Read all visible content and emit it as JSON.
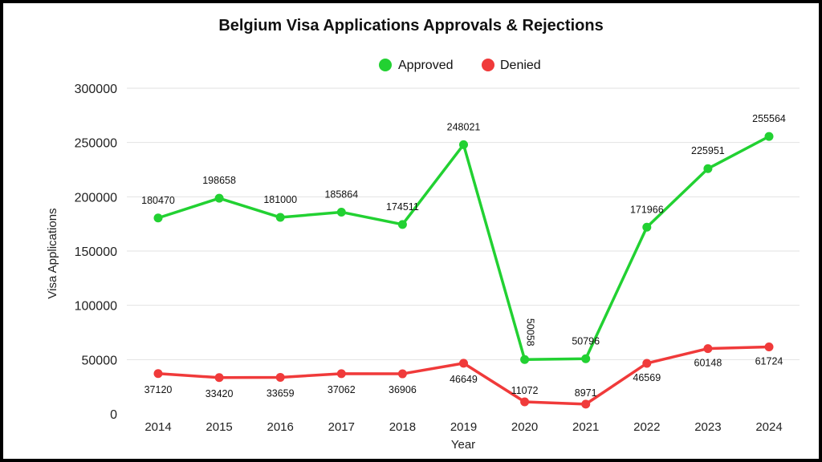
{
  "chart_data": {
    "type": "line",
    "title": "Belgium Visa Applications Approvals & Rejections",
    "xlabel": "Year",
    "ylabel": "Visa Applications",
    "x": [
      "2014",
      "2015",
      "2016",
      "2017",
      "2018",
      "2019",
      "2020",
      "2021",
      "2022",
      "2023",
      "2024"
    ],
    "ylim": [
      0,
      300000
    ],
    "yticks": [
      0,
      50000,
      100000,
      150000,
      200000,
      250000,
      300000
    ],
    "grid": true,
    "legend_position": "top-center",
    "series": [
      {
        "name": "Approved",
        "color": "#22d132",
        "values": [
          180470,
          198658,
          181000,
          185864,
          174511,
          248021,
          50058,
          50796,
          171966,
          225951,
          255564
        ],
        "labels": [
          "180470",
          "198658",
          "181000",
          "185864",
          "174511",
          "248021",
          "50058",
          "50796",
          "171966",
          "225951",
          "255564"
        ]
      },
      {
        "name": "Denied",
        "color": "#f03a3a",
        "values": [
          37120,
          33420,
          33659,
          37062,
          36906,
          46649,
          11072,
          8971,
          46569,
          60148,
          61724
        ],
        "labels": [
          "37120",
          "33420",
          "33659",
          "37062",
          "36906",
          "46649",
          "11072",
          "8971",
          "46569",
          "60148",
          "61724"
        ]
      }
    ]
  }
}
